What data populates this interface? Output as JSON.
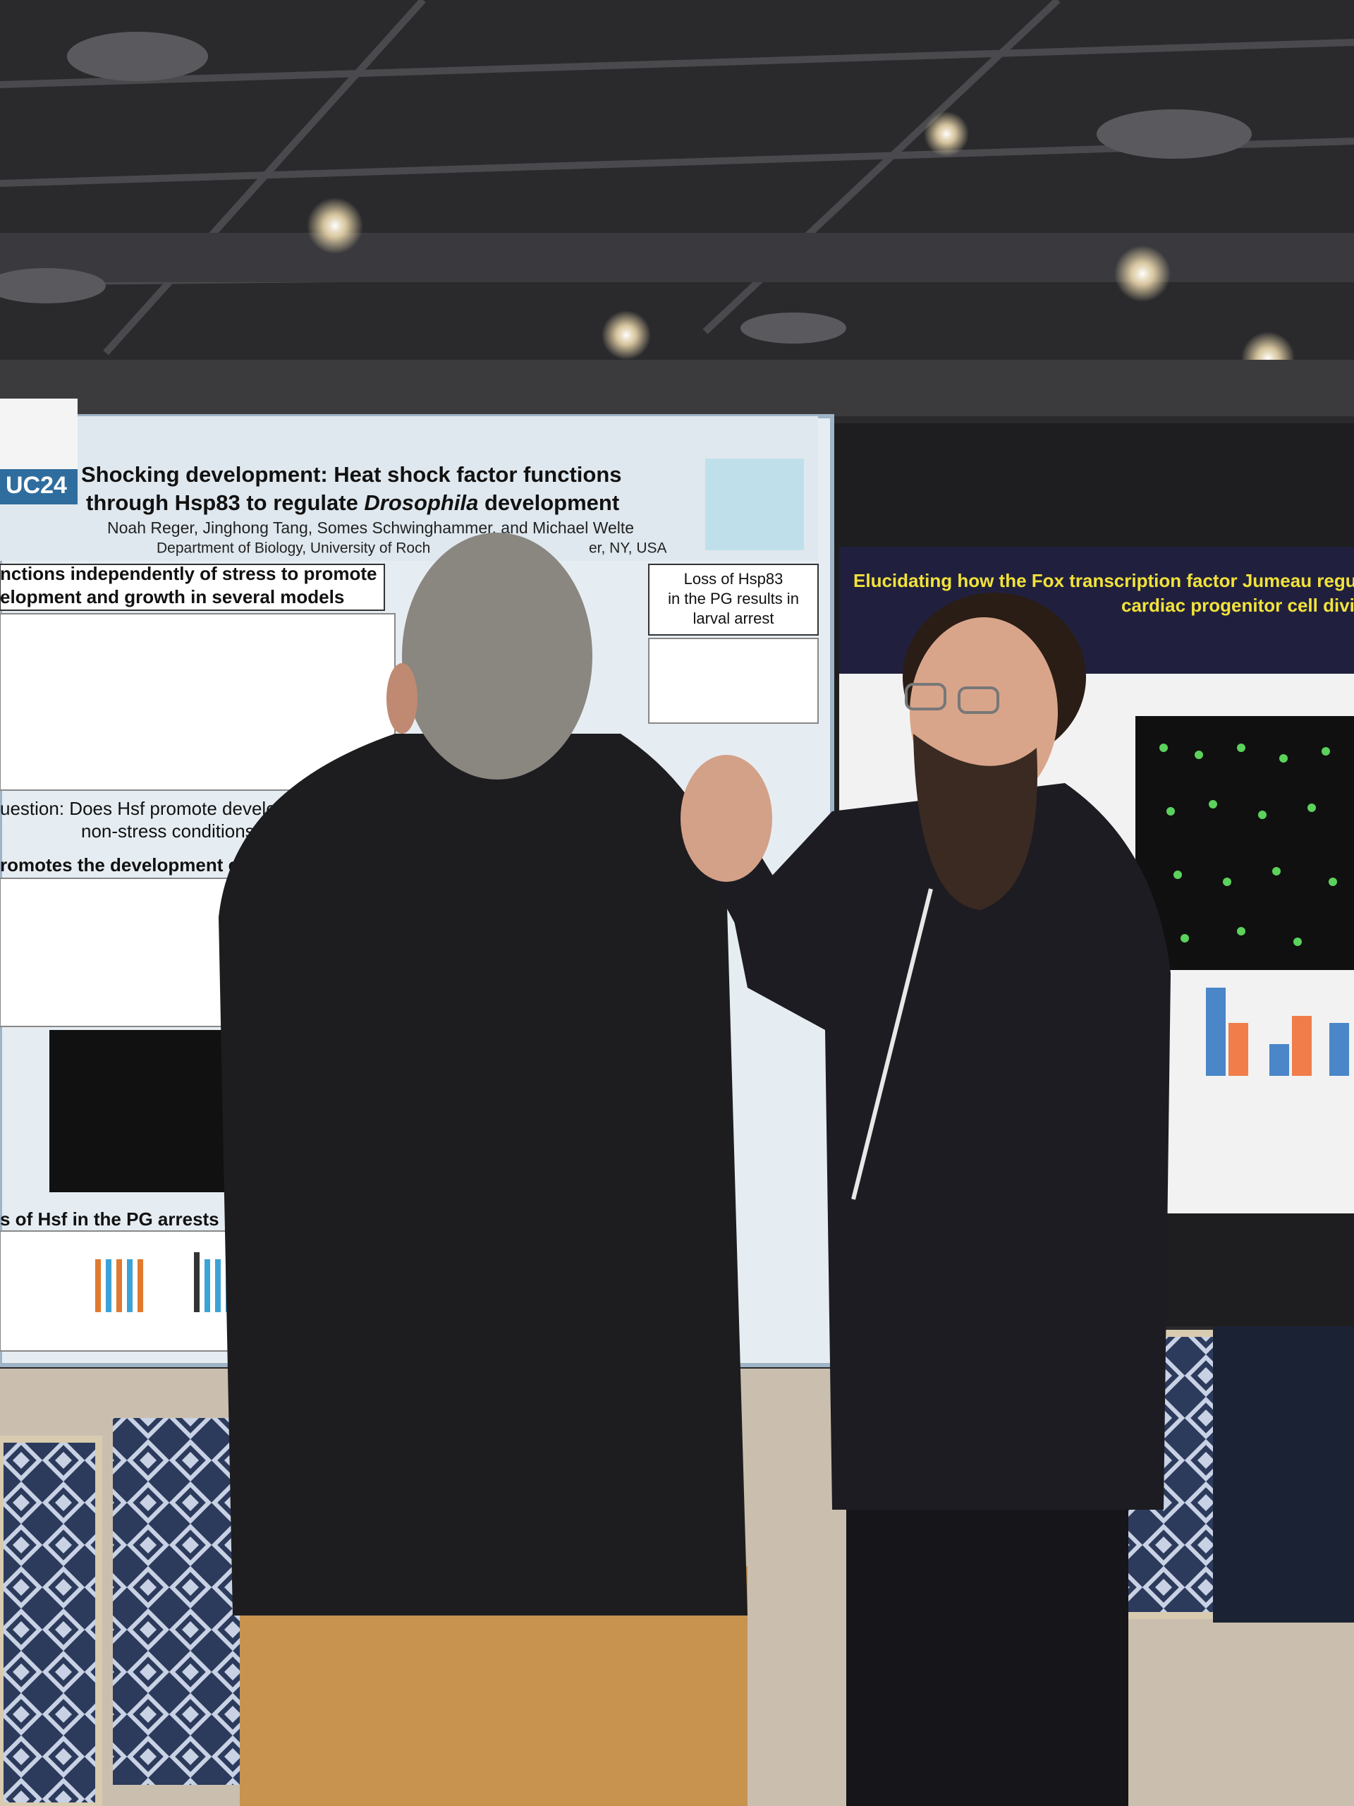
{
  "poster_left": {
    "logo": "UC24",
    "title_line1": "Shocking development: Heat shock factor functions",
    "title_line2_start": "through Hsp83 to regulate ",
    "title_line2_italic": "Drosophila",
    "title_line2_end": " development",
    "authors": "Noah Reger, Jinghong Tang, Somes Schwinghammer, and Michael Welte",
    "affiliation_start": "Department of Biology, University of Roch",
    "affiliation_end": "er, NY, USA",
    "section1_line1": "nctions independently of stress to promote",
    "section1_line2": "elopment and growth in several models",
    "section2_lines": [
      "Loss of Hsp83",
      "in the PG results in",
      "larval arrest"
    ],
    "question_line1": "uestion: Does Hsf promote development unde",
    "question_line2": "non-stress conditions also in flies?",
    "section3": "romotes the development of se",
    "section4": "s of Hsf in the PG arrests lar"
  },
  "poster_right": {
    "title_line1": "Elucidating how the Fox transcription factor Jumeau regulat",
    "title_line2": "cardiac progenitor cell divisio"
  }
}
